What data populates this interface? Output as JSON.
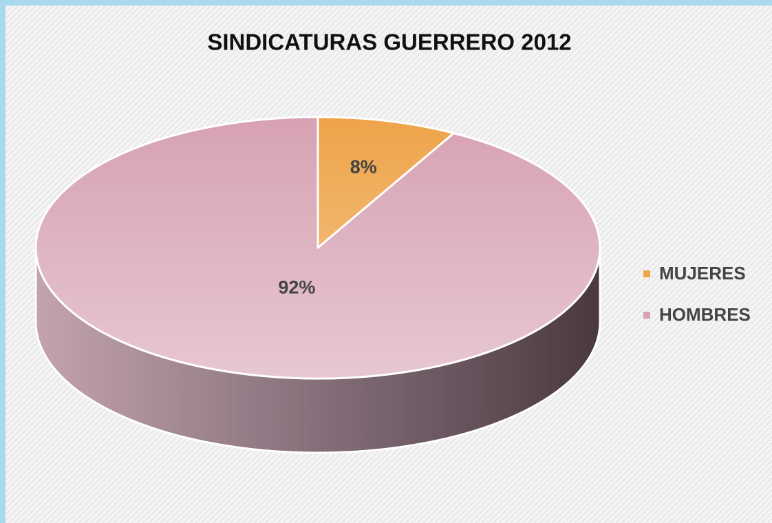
{
  "chart_data": {
    "type": "pie",
    "title": "SINDICATURAS GUERRERO 2012",
    "categories": [
      "MUJERES",
      "HOMBRES"
    ],
    "values": [
      8,
      92
    ],
    "value_labels": [
      "8%",
      "92%"
    ],
    "colors": [
      "#eea449",
      "#d7a2b3"
    ],
    "legend": "right"
  }
}
